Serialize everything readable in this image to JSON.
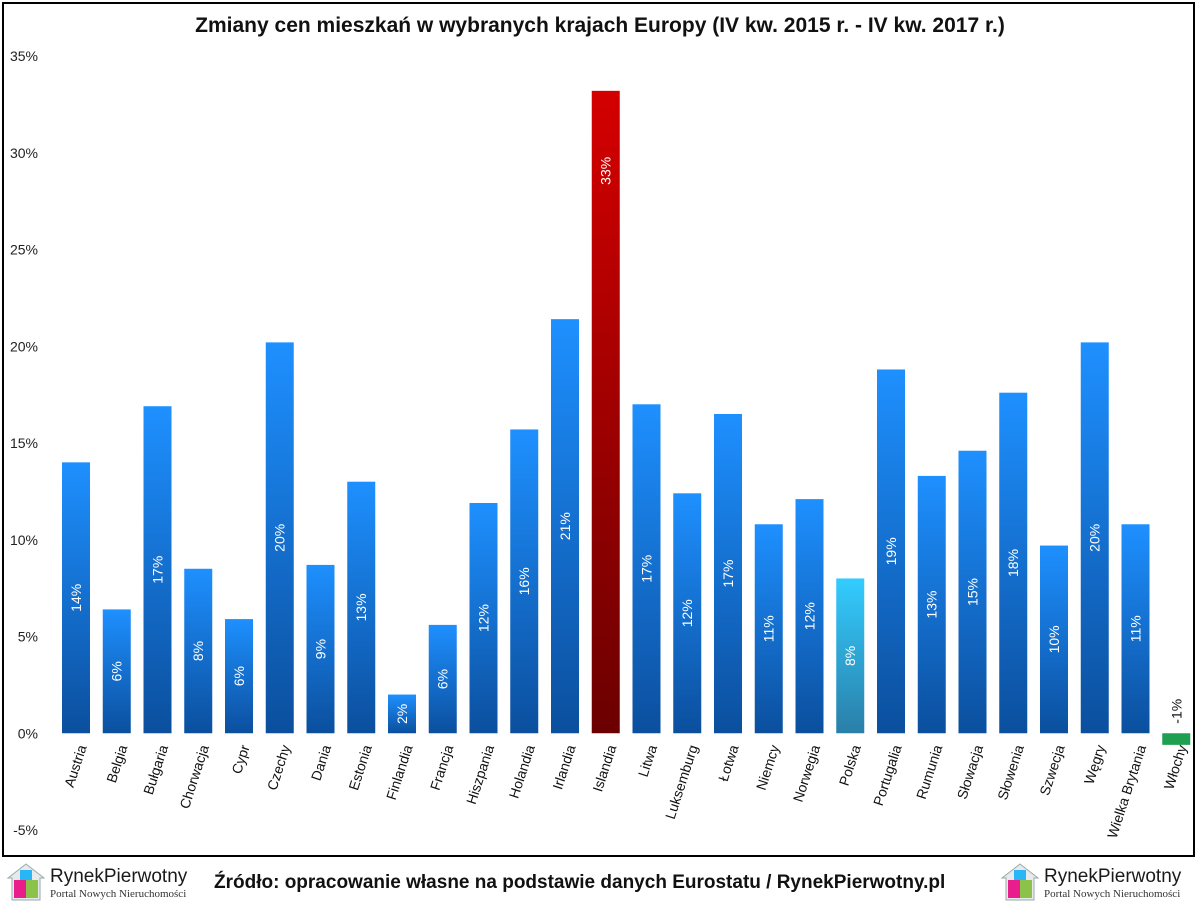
{
  "chart_data": {
    "type": "bar",
    "title": "Zmiany cen mieszkań w wybranych krajach Europy (IV kw. 2015 r. - IV kw. 2017 r.)",
    "xlabel": "",
    "ylabel": "",
    "ylim": [
      -5,
      35
    ],
    "yticks": [
      "-5%",
      "0%",
      "5%",
      "10%",
      "15%",
      "20%",
      "25%",
      "30%",
      "35%"
    ],
    "grid": false,
    "categories": [
      "Austria",
      "Belgia",
      "Bułgaria",
      "Chorwacja",
      "Cypr",
      "Czechy",
      "Dania",
      "Estonia",
      "Finlandia",
      "Francja",
      "Hiszpania",
      "Holandia",
      "Irlandia",
      "Islandia",
      "Litwa",
      "Luksemburg",
      "Łotwa",
      "Niemcy",
      "Norwegia",
      "Polska",
      "Portugalia",
      "Rumunia",
      "Słowacja",
      "Słowenia",
      "Szwecja",
      "Węgry",
      "Wielka Brytania",
      "Włochy"
    ],
    "values": [
      14.0,
      6.4,
      16.9,
      8.5,
      5.9,
      20.2,
      8.7,
      13.0,
      2.0,
      5.6,
      11.9,
      15.7,
      21.4,
      33.2,
      17.0,
      12.4,
      16.5,
      10.8,
      12.1,
      8.0,
      18.8,
      13.3,
      14.6,
      17.6,
      9.7,
      20.2,
      10.8,
      -0.6
    ],
    "data_labels": [
      "14%",
      "6%",
      "17%",
      "8%",
      "6%",
      "20%",
      "9%",
      "13%",
      "2%",
      "6%",
      "12%",
      "16%",
      "21%",
      "33%",
      "17%",
      "12%",
      "17%",
      "11%",
      "12%",
      "8%",
      "19%",
      "13%",
      "15%",
      "18%",
      "10%",
      "20%",
      "11%",
      "-1%"
    ],
    "colors": {
      "default": [
        "#1e90ff",
        "#0b4f9e"
      ],
      "Islandia": [
        "#d40000",
        "#6b0000"
      ],
      "Polska": [
        "#33ccff",
        "#2a7fa8"
      ],
      "Włochy": [
        "#1ea050",
        "#1ea050"
      ]
    }
  },
  "footer": {
    "logo_brand": "RynekPierwotny",
    "logo_tagline": "Portal Nowych Nieruchomości",
    "source": "Źródło: opracowanie własne na podstawie danych Eurostatu / RynekPierwotny.pl"
  }
}
